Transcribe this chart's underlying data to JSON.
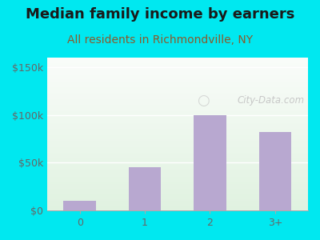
{
  "title": "Median family income by earners",
  "subtitle": "All residents in Richmondville, NY",
  "categories": [
    "0",
    "1",
    "2",
    "3+"
  ],
  "values": [
    10000,
    45000,
    100000,
    82000
  ],
  "bar_color": "#b8a8d0",
  "background_outer": "#00e8f0",
  "title_color": "#1a1a1a",
  "subtitle_color": "#8b5a2b",
  "yticks": [
    0,
    50000,
    100000,
    150000
  ],
  "ytick_labels": [
    "$0",
    "$50k",
    "$100k",
    "$150k"
  ],
  "ylim": [
    0,
    160000
  ],
  "watermark": "City-Data.com",
  "watermark_color": "#c0c0c0",
  "title_fontsize": 13,
  "subtitle_fontsize": 10,
  "tick_color": "#666666"
}
